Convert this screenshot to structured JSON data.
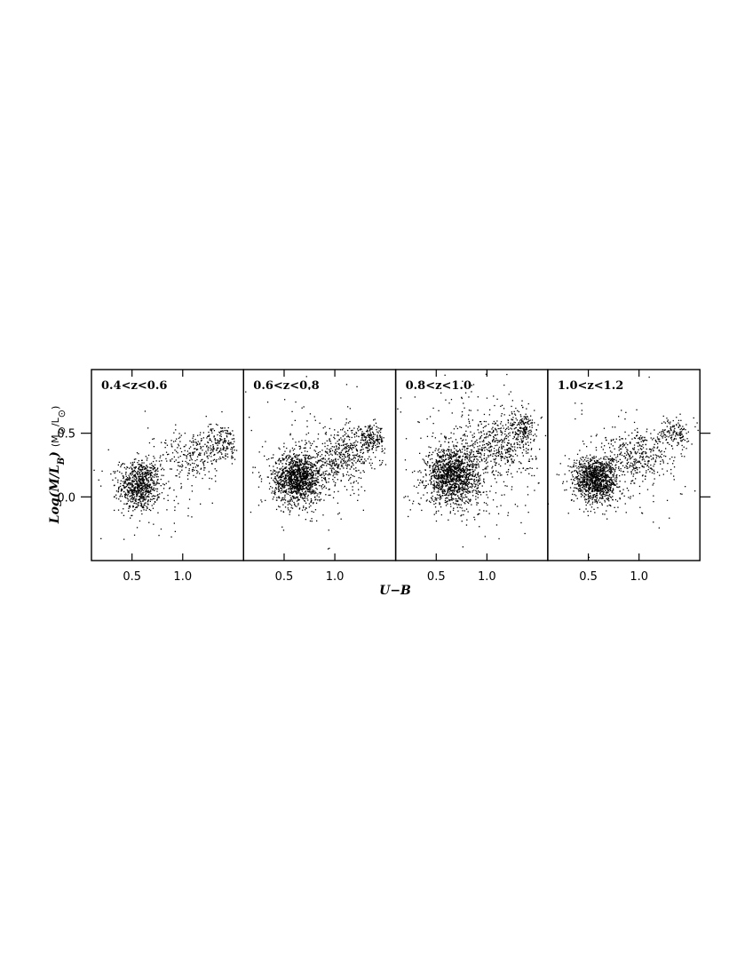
{
  "chart_data": {
    "type": "scatter",
    "xlabel": "U−B",
    "ylabel": {
      "main": "Log(M/L",
      "sub": "B",
      "close": ")",
      "unit": "(M",
      "unit_sub1": "⊙",
      "unit_mid": "/L",
      "unit_sub2": "⊙",
      "unit_close": ")"
    },
    "xlim": [
      0.1,
      1.6
    ],
    "ylim": [
      -0.5,
      1.0
    ],
    "xticks": [
      0.5,
      1.0
    ],
    "xtick_labels": [
      "0.5",
      "1.0"
    ],
    "yticks": [
      0.5,
      0.0
    ],
    "ytick_labels": [
      "0.5",
      "0.0"
    ],
    "panels": [
      {
        "label": "0.4<z<0.6",
        "clusters": [
          {
            "n": 750,
            "cx": 0.57,
            "cy": 0.09,
            "sx": 0.1,
            "sy": 0.1
          },
          {
            "n": 220,
            "cx": 1.1,
            "cy": 0.33,
            "sx": 0.17,
            "sy": 0.1
          },
          {
            "n": 160,
            "cx": 1.38,
            "cy": 0.43,
            "sx": 0.09,
            "sy": 0.07
          },
          {
            "n": 90,
            "cx": 0.8,
            "cy": 0.2,
            "sx": 0.3,
            "sy": 0.22
          }
        ]
      },
      {
        "label": "0.6<z<0.8",
        "clusters": [
          {
            "n": 1250,
            "cx": 0.63,
            "cy": 0.15,
            "sx": 0.12,
            "sy": 0.1
          },
          {
            "n": 380,
            "cx": 1.08,
            "cy": 0.33,
            "sx": 0.17,
            "sy": 0.1
          },
          {
            "n": 180,
            "cx": 1.35,
            "cy": 0.46,
            "sx": 0.07,
            "sy": 0.05
          },
          {
            "n": 200,
            "cx": 0.8,
            "cy": 0.25,
            "sx": 0.35,
            "sy": 0.25
          }
        ]
      },
      {
        "label": "0.8<z<1.0",
        "clusters": [
          {
            "n": 1300,
            "cx": 0.66,
            "cy": 0.17,
            "sx": 0.13,
            "sy": 0.11
          },
          {
            "n": 420,
            "cx": 1.1,
            "cy": 0.4,
            "sx": 0.18,
            "sy": 0.13
          },
          {
            "n": 170,
            "cx": 1.35,
            "cy": 0.55,
            "sx": 0.06,
            "sy": 0.07
          },
          {
            "n": 280,
            "cx": 0.85,
            "cy": 0.35,
            "sx": 0.35,
            "sy": 0.3
          }
        ]
      },
      {
        "label": "1.0<z<1.2",
        "clusters": [
          {
            "n": 1100,
            "cx": 0.57,
            "cy": 0.14,
            "sx": 0.11,
            "sy": 0.09
          },
          {
            "n": 330,
            "cx": 1.0,
            "cy": 0.32,
            "sx": 0.17,
            "sy": 0.1
          },
          {
            "n": 130,
            "cx": 1.35,
            "cy": 0.52,
            "sx": 0.07,
            "sy": 0.06
          },
          {
            "n": 150,
            "cx": 0.8,
            "cy": 0.25,
            "sx": 0.32,
            "sy": 0.22
          }
        ]
      }
    ]
  }
}
